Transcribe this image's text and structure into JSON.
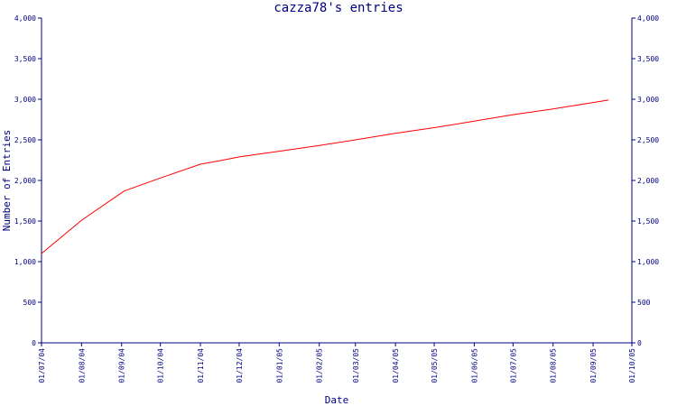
{
  "chart_data": {
    "type": "line",
    "title": "cazza78's entries",
    "xlabel": "Date",
    "ylabel": "Number of Entries",
    "ylim": [
      0,
      4000
    ],
    "y_ticks": [
      {
        "value": 0,
        "label": "0"
      },
      {
        "value": 500,
        "label": "500"
      },
      {
        "value": 1000,
        "label": "1,000"
      },
      {
        "value": 1500,
        "label": "1,500"
      },
      {
        "value": 2000,
        "label": "2,000"
      },
      {
        "value": 2500,
        "label": "2,500"
      },
      {
        "value": 3000,
        "label": "3,000"
      },
      {
        "value": 3500,
        "label": "3,500"
      },
      {
        "value": 4000,
        "label": "4,000"
      }
    ],
    "x_ticks": [
      {
        "value": "2004-07-01",
        "label": "01/07/04"
      },
      {
        "value": "2004-08-01",
        "label": "01/08/04"
      },
      {
        "value": "2004-09-01",
        "label": "01/09/04"
      },
      {
        "value": "2004-10-01",
        "label": "01/10/04"
      },
      {
        "value": "2004-11-01",
        "label": "01/11/04"
      },
      {
        "value": "2004-12-01",
        "label": "01/12/04"
      },
      {
        "value": "2005-01-01",
        "label": "01/01/05"
      },
      {
        "value": "2005-02-01",
        "label": "01/02/05"
      },
      {
        "value": "2005-03-01",
        "label": "01/03/05"
      },
      {
        "value": "2005-04-01",
        "label": "01/04/05"
      },
      {
        "value": "2005-05-01",
        "label": "01/05/05"
      },
      {
        "value": "2005-06-01",
        "label": "01/06/05"
      },
      {
        "value": "2005-07-01",
        "label": "01/07/05"
      },
      {
        "value": "2005-08-01",
        "label": "01/08/05"
      },
      {
        "value": "2005-09-01",
        "label": "01/09/05"
      },
      {
        "value": "2005-10-01",
        "label": "01/10/05"
      }
    ],
    "series": [
      {
        "color": "#ff0000",
        "x": [
          "2004-07-01",
          "2004-08-01",
          "2004-09-03",
          "2004-10-01",
          "2004-11-01",
          "2004-11-15",
          "2004-12-01",
          "2005-01-01",
          "2005-02-01",
          "2005-03-01",
          "2005-04-01",
          "2005-05-01",
          "2005-06-01",
          "2005-07-01",
          "2005-08-01",
          "2005-09-01",
          "2005-09-13"
        ],
        "y": [
          1100,
          1510,
          1870,
          2030,
          2200,
          2240,
          2290,
          2360,
          2430,
          2500,
          2580,
          2650,
          2730,
          2810,
          2880,
          2960,
          2990
        ]
      }
    ],
    "grid": false,
    "legend": "none"
  }
}
